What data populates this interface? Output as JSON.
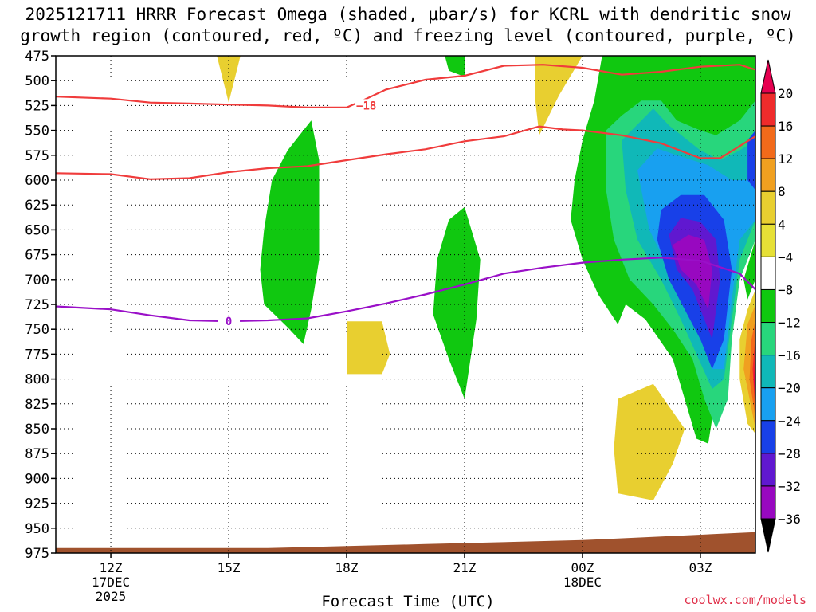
{
  "title_line1": "2025121711 HRRR Forecast Omega (shaded, μbar/s) for KCRL with dendritic snow",
  "title_line2": "growth region (contoured, red, ºC) and freezing level (contoured, purple, ºC)",
  "credit": "coolwx.com/models",
  "chart_data": {
    "type": "time-height",
    "title": "2025121711 HRRR Forecast Omega (shaded, μbar/s) for KCRL with dendritic snow growth region (contoured, red, ºC) and freezing level (contoured, purple, ºC)",
    "xlabel": "Forecast Time (UTC)",
    "ylabel": "",
    "x_units": "hours UTC from 17DEC 12Z",
    "xlim": [
      10.6,
      28.4
    ],
    "ylim": [
      975,
      475
    ],
    "x_ticks": [
      {
        "x": 12,
        "label": "12Z",
        "sub1": "17DEC",
        "sub2": "2025"
      },
      {
        "x": 15,
        "label": "15Z",
        "sub1": "",
        "sub2": ""
      },
      {
        "x": 18,
        "label": "18Z",
        "sub1": "",
        "sub2": ""
      },
      {
        "x": 21,
        "label": "21Z",
        "sub1": "",
        "sub2": ""
      },
      {
        "x": 24,
        "label": "00Z",
        "sub1": "18DEC",
        "sub2": ""
      },
      {
        "x": 27,
        "label": "03Z",
        "sub1": "",
        "sub2": ""
      }
    ],
    "y_ticks": [
      475,
      500,
      525,
      550,
      575,
      600,
      625,
      650,
      675,
      700,
      725,
      750,
      775,
      800,
      825,
      850,
      875,
      900,
      925,
      950,
      975
    ],
    "grid": "dotted",
    "colorbar": {
      "levels": [
        20,
        16,
        12,
        8,
        4,
        -4,
        -8,
        -12,
        -16,
        -20,
        -24,
        -28,
        -32,
        -36
      ],
      "labels": [
        "20",
        "16",
        "12",
        "8",
        "4",
        "−4",
        "−8",
        "−12",
        "−16",
        "−20",
        "−24",
        "−28",
        "−32",
        "−36"
      ],
      "colors": [
        "#e60050",
        "#ef2b2b",
        "#f26a1a",
        "#f0a020",
        "#e8cf30",
        "#e6e036",
        "#ffffff",
        "#10c810",
        "#28d67c",
        "#10b8b8",
        "#18a0f0",
        "#1840e8",
        "#6018d0",
        "#9808c0",
        "#a8a8a8",
        "#000000"
      ]
    },
    "contours": [
      {
        "name": "-18",
        "color": "#f03c3c",
        "label": "−18",
        "label_at": [
          18.5,
          525
        ],
        "points": [
          [
            10.6,
            516
          ],
          [
            12,
            518
          ],
          [
            13,
            522
          ],
          [
            14,
            523
          ],
          [
            15,
            524
          ],
          [
            16,
            525
          ],
          [
            17,
            527
          ],
          [
            18,
            527
          ],
          [
            18.4,
            520
          ],
          [
            19,
            509
          ],
          [
            20,
            499
          ],
          [
            21,
            495
          ],
          [
            22,
            485
          ],
          [
            23,
            484
          ],
          [
            24,
            487
          ],
          [
            25,
            494
          ],
          [
            26,
            491
          ],
          [
            27,
            486
          ],
          [
            28,
            484
          ],
          [
            28.4,
            489
          ]
        ]
      },
      {
        "name": "-12",
        "color": "#f03c3c",
        "label": "",
        "points": [
          [
            10.6,
            593
          ],
          [
            12,
            594
          ],
          [
            13,
            599
          ],
          [
            14,
            598
          ],
          [
            15,
            592
          ],
          [
            16,
            588
          ],
          [
            17,
            586
          ],
          [
            18,
            580
          ],
          [
            19,
            574
          ],
          [
            20,
            569
          ],
          [
            21,
            561
          ],
          [
            22,
            556
          ],
          [
            22.9,
            546
          ],
          [
            23.5,
            549
          ],
          [
            24,
            550
          ],
          [
            25,
            555
          ],
          [
            26,
            563
          ],
          [
            27,
            578
          ],
          [
            27.5,
            578
          ],
          [
            28.4,
            556
          ]
        ]
      },
      {
        "name": "0",
        "color": "#9a10c8",
        "label": "0",
        "label_at": [
          15,
          742
        ],
        "points": [
          [
            10.6,
            727
          ],
          [
            12,
            730
          ],
          [
            13,
            736
          ],
          [
            14,
            741
          ],
          [
            15,
            742
          ],
          [
            16,
            741
          ],
          [
            17,
            739
          ],
          [
            18,
            732
          ],
          [
            19,
            724
          ],
          [
            20,
            715
          ],
          [
            21,
            705
          ],
          [
            22,
            694
          ],
          [
            23,
            688
          ],
          [
            24,
            683
          ],
          [
            25,
            680
          ],
          [
            26,
            678
          ],
          [
            27,
            681
          ],
          [
            28,
            694
          ],
          [
            28.4,
            710
          ]
        ]
      }
    ],
    "shaded_regions": [
      {
        "level": "-4..-8",
        "color": "#10c810",
        "points": [
          [
            17.1,
            540
          ],
          [
            17.3,
            580
          ],
          [
            17.3,
            680
          ],
          [
            17.1,
            730
          ],
          [
            16.9,
            765
          ],
          [
            16.5,
            748
          ],
          [
            15.9,
            725
          ],
          [
            15.8,
            690
          ],
          [
            15.9,
            650
          ],
          [
            16.1,
            600
          ],
          [
            16.5,
            570
          ]
        ]
      },
      {
        "level": "-4..-8",
        "color": "#10c810",
        "points": [
          [
            21,
            627
          ],
          [
            21.4,
            680
          ],
          [
            21.3,
            740
          ],
          [
            21,
            820
          ],
          [
            20.6,
            780
          ],
          [
            20.2,
            735
          ],
          [
            20.3,
            680
          ],
          [
            20.6,
            640
          ]
        ]
      },
      {
        "level": "-4..-8",
        "color": "#10c810",
        "points": [
          [
            20.5,
            475
          ],
          [
            21,
            475
          ],
          [
            21,
            496
          ],
          [
            20.6,
            490
          ]
        ]
      },
      {
        "level": "-4..-8",
        "color": "#10c810",
        "points": [
          [
            23.7,
            640
          ],
          [
            23.8,
            600
          ],
          [
            24,
            560
          ],
          [
            24.3,
            520
          ],
          [
            24.5,
            475
          ],
          [
            28.4,
            475
          ],
          [
            28.4,
            650
          ],
          [
            28.1,
            680
          ],
          [
            27.9,
            720
          ],
          [
            27.7,
            780
          ],
          [
            27.3,
            840
          ],
          [
            27.2,
            865
          ],
          [
            26.9,
            860
          ],
          [
            26.6,
            820
          ],
          [
            26.3,
            780
          ],
          [
            25.6,
            740
          ],
          [
            25.1,
            725
          ],
          [
            24.9,
            745
          ],
          [
            24.4,
            715
          ],
          [
            24,
            680
          ]
        ]
      },
      {
        "level": "-8..-12",
        "color": "#28d67c",
        "points": [
          [
            24.6,
            550
          ],
          [
            25,
            535
          ],
          [
            25.5,
            520
          ],
          [
            26,
            520
          ],
          [
            26.4,
            540
          ],
          [
            27,
            550
          ],
          [
            27.4,
            555
          ],
          [
            28,
            540
          ],
          [
            28.4,
            520
          ],
          [
            28.4,
            660
          ],
          [
            28,
            700
          ],
          [
            27.8,
            760
          ],
          [
            27.7,
            820
          ],
          [
            27.4,
            850
          ],
          [
            27.1,
            820
          ],
          [
            26.8,
            780
          ],
          [
            26.3,
            750
          ],
          [
            25.8,
            725
          ],
          [
            25.2,
            700
          ],
          [
            24.8,
            660
          ],
          [
            24.6,
            610
          ]
        ]
      },
      {
        "level": "-12..-16",
        "color": "#10b8b8",
        "points": [
          [
            25,
            560
          ],
          [
            25.5,
            540
          ],
          [
            25.8,
            528
          ],
          [
            26.2,
            545
          ],
          [
            27,
            570
          ],
          [
            27.5,
            580
          ],
          [
            28,
            570
          ],
          [
            28.4,
            560
          ],
          [
            28.4,
            640
          ],
          [
            28,
            680
          ],
          [
            27.8,
            740
          ],
          [
            27.6,
            800
          ],
          [
            27.3,
            810
          ],
          [
            26.9,
            775
          ],
          [
            26.5,
            740
          ],
          [
            26,
            700
          ],
          [
            25.4,
            660
          ],
          [
            25.1,
            610
          ]
        ]
      },
      {
        "level": "-16..-20",
        "color": "#18a0f0",
        "points": [
          [
            25.4,
            590
          ],
          [
            25.9,
            568
          ],
          [
            26.4,
            575
          ],
          [
            27.2,
            585
          ],
          [
            27.8,
            600
          ],
          [
            28.4,
            600
          ],
          [
            28.4,
            640
          ],
          [
            28,
            660
          ],
          [
            27.8,
            720
          ],
          [
            27.6,
            790
          ],
          [
            27.3,
            790
          ],
          [
            27,
            760
          ],
          [
            26.6,
            720
          ],
          [
            26.2,
            690
          ],
          [
            25.7,
            650
          ]
        ]
      },
      {
        "level": "-20..-24",
        "color": "#1840e8",
        "points": [
          [
            26,
            630
          ],
          [
            26.5,
            615
          ],
          [
            27.1,
            615
          ],
          [
            27.6,
            640
          ],
          [
            27.8,
            690
          ],
          [
            27.6,
            760
          ],
          [
            27.3,
            790
          ],
          [
            27,
            760
          ],
          [
            26.6,
            730
          ],
          [
            26.2,
            700
          ],
          [
            25.9,
            660
          ]
        ]
      },
      {
        "level": "-20..-24",
        "color": "#1840e8",
        "points": [
          [
            28.2,
            560
          ],
          [
            28.4,
            550
          ],
          [
            28.4,
            610
          ],
          [
            28.2,
            600
          ]
        ]
      },
      {
        "level": "-24..-28",
        "color": "#6018d0",
        "points": [
          [
            26.2,
            655
          ],
          [
            26.5,
            638
          ],
          [
            27,
            642
          ],
          [
            27.4,
            660
          ],
          [
            27.5,
            700
          ],
          [
            27.3,
            760
          ],
          [
            27.1,
            740
          ],
          [
            26.8,
            710
          ],
          [
            26.4,
            690
          ]
        ]
      },
      {
        "level": "-28..-32",
        "color": "#9808c0",
        "points": [
          [
            26.3,
            665
          ],
          [
            26.7,
            655
          ],
          [
            27.1,
            660
          ],
          [
            27.3,
            690
          ],
          [
            27.2,
            730
          ],
          [
            26.9,
            705
          ],
          [
            26.5,
            690
          ]
        ]
      },
      {
        "level": "4..8",
        "color": "#e8cf30",
        "points": [
          [
            14.7,
            475
          ],
          [
            15.3,
            475
          ],
          [
            15,
            522
          ]
        ]
      },
      {
        "level": "4..8",
        "color": "#e8cf30",
        "points": [
          [
            22.8,
            475
          ],
          [
            24,
            475
          ],
          [
            23.4,
            515
          ],
          [
            22.9,
            555
          ],
          [
            22.8,
            520
          ]
        ]
      },
      {
        "level": "4..8",
        "color": "#e8cf30",
        "points": [
          [
            18,
            742
          ],
          [
            18.9,
            742
          ],
          [
            19.1,
            775
          ],
          [
            18.9,
            795
          ],
          [
            18,
            795
          ]
        ]
      },
      {
        "level": "4..8",
        "color": "#e8cf30",
        "points": [
          [
            24.9,
            820
          ],
          [
            25.8,
            805
          ],
          [
            26.6,
            850
          ],
          [
            26.3,
            885
          ],
          [
            25.8,
            922
          ],
          [
            24.9,
            915
          ],
          [
            24.8,
            870
          ]
        ]
      },
      {
        "level": "4..8",
        "color": "#e8cf30",
        "points": [
          [
            28.4,
            710
          ],
          [
            28.4,
            855
          ],
          [
            28.2,
            845
          ],
          [
            28,
            800
          ],
          [
            28,
            760
          ],
          [
            28.2,
            730
          ]
        ]
      },
      {
        "level": "8..12",
        "color": "#f0a020",
        "points": [
          [
            28.4,
            725
          ],
          [
            28.4,
            850
          ],
          [
            28.3,
            830
          ],
          [
            28.1,
            790
          ],
          [
            28.2,
            745
          ]
        ]
      },
      {
        "level": "12..16",
        "color": "#f26a1a",
        "points": [
          [
            28.4,
            740
          ],
          [
            28.4,
            840
          ],
          [
            28.25,
            800
          ],
          [
            28.3,
            760
          ]
        ]
      },
      {
        "level": "16..20",
        "color": "#ef2b2b",
        "points": [
          [
            28.4,
            755
          ],
          [
            28.4,
            835
          ],
          [
            28.33,
            790
          ]
        ]
      },
      {
        "level": "20+",
        "color": "#e60050",
        "points": [
          [
            28.4,
            770
          ],
          [
            28.4,
            830
          ],
          [
            28.36,
            800
          ]
        ]
      },
      {
        "level": "green-edge",
        "color": "#10c810",
        "points": [
          [
            28.1,
            700
          ],
          [
            28.4,
            660
          ],
          [
            28.4,
            700
          ],
          [
            28.2,
            720
          ]
        ]
      },
      {
        "level": "terrain",
        "color": "#a0522d",
        "points": [
          [
            10.6,
            970
          ],
          [
            16,
            970
          ],
          [
            20,
            966
          ],
          [
            24,
            962
          ],
          [
            28.4,
            954
          ],
          [
            28.4,
            975
          ],
          [
            10.6,
            975
          ]
        ]
      }
    ]
  }
}
